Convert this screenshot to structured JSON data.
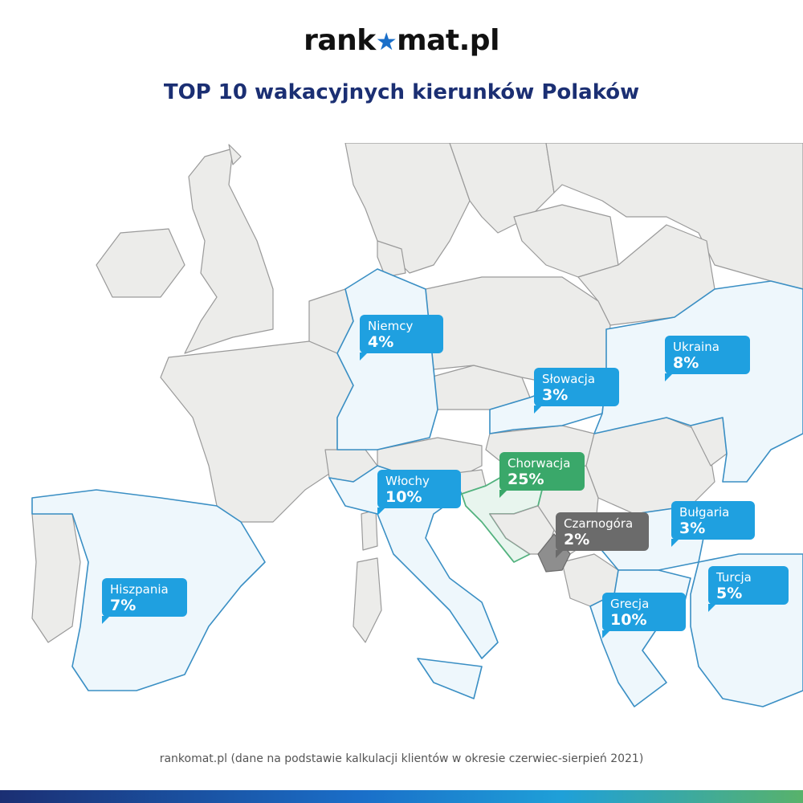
{
  "brand": {
    "logo_left": "rank",
    "logo_star": "★",
    "logo_right": "mat.pl"
  },
  "title": "TOP 10 wakacyjnych kierunków Polaków",
  "colors": {
    "ocean": "#ffffff",
    "other_country": "#ececea",
    "other_border": "#9a9a9a",
    "top_country": "#eef7fc",
    "top_border": "#3a8fc4",
    "blue_callout": "#1fa0e0",
    "green_callout": "#3aa86a",
    "croatia_fill": "#e8f5ee",
    "croatia_border": "#52b27e",
    "gray_callout": "#6b6b6b",
    "montenegro_fill": "#8e8e8e"
  },
  "callouts": [
    {
      "country": "Niemcy",
      "value": "4%",
      "style": "blue"
    },
    {
      "country": "Ukraina",
      "value": "8%",
      "style": "blue"
    },
    {
      "country": "Słowacja",
      "value": "3%",
      "style": "blue"
    },
    {
      "country": "Chorwacja",
      "value": "25%",
      "style": "green"
    },
    {
      "country": "Włochy",
      "value": "10%",
      "style": "blue"
    },
    {
      "country": "Czarnogóra",
      "value": "2%",
      "style": "gray"
    },
    {
      "country": "Bułgaria",
      "value": "3%",
      "style": "blue"
    },
    {
      "country": "Hiszpania",
      "value": "7%",
      "style": "blue"
    },
    {
      "country": "Turcja",
      "value": "5%",
      "style": "blue"
    },
    {
      "country": "Grecja",
      "value": "10%",
      "style": "blue"
    }
  ],
  "footer": "rankomat.pl (dane na podstawie kalkulacji klientów w okresie czerwiec-sierpień 2021)"
}
